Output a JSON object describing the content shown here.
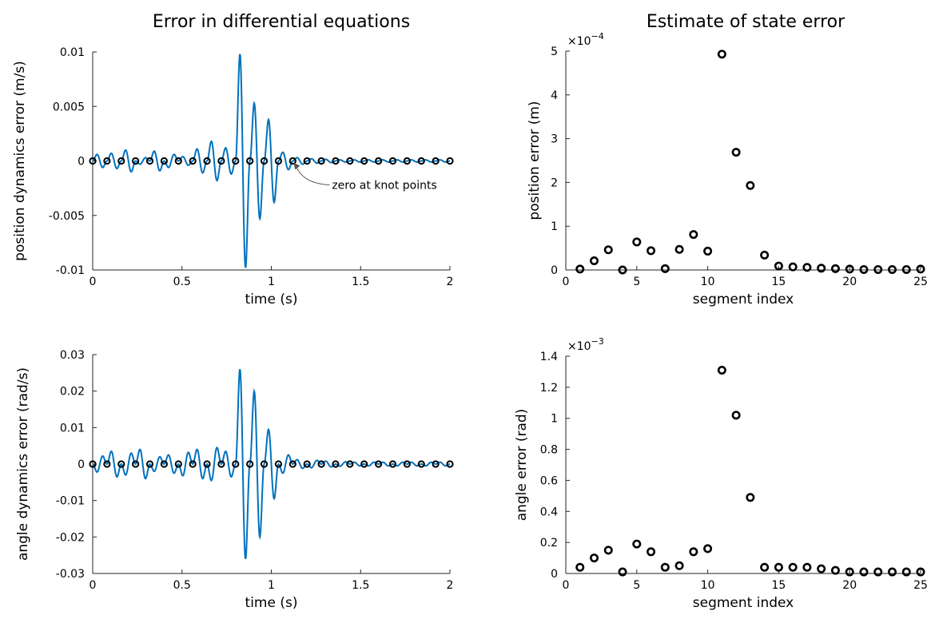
{
  "titles": {
    "left": "Error in differential equations",
    "right": "Estimate of state error"
  },
  "chart_data": [
    {
      "type": "line",
      "title": "Error in differential equations",
      "xlabel": "time (s)",
      "ylabel": "position dynamics error (m/s)",
      "xlim": [
        0,
        2
      ],
      "ylim": [
        -0.01,
        0.01
      ],
      "xticks": [
        0,
        0.5,
        1,
        1.5,
        2
      ],
      "xtick_labels": [
        "0",
        "0.5",
        "1",
        "1.5",
        "2"
      ],
      "yticks": [
        -0.01,
        -0.005,
        0,
        0.005,
        0.01
      ],
      "ytick_labels": [
        "-0.01",
        "-0.005",
        "0",
        "0.005",
        "0.01"
      ],
      "grid": false,
      "line_color": "#0072bd",
      "marker_color": "#000000",
      "segment_count": 25,
      "segment_duration": 0.08,
      "segment_peak": [
        0.0006,
        0.0007,
        0.001,
        0.0003,
        0.0009,
        0.0006,
        0.0004,
        0.0011,
        0.0018,
        0.0012,
        0.0098,
        0.0053,
        0.0038,
        0.0008,
        0.0003,
        0.0002,
        0.00015,
        0.0001,
        0.0001,
        0.0001,
        0.0001,
        0.0001,
        0.0001,
        0.0001,
        0.0001
      ],
      "segment_sign": [
        1,
        1,
        1,
        -1,
        1,
        -1,
        1,
        1,
        1,
        1,
        1,
        1,
        1,
        1,
        1,
        1,
        1,
        1,
        1,
        1,
        1,
        1,
        1,
        1,
        1
      ],
      "knot_values": 0,
      "annotation": {
        "text": "zero at knot points",
        "target": [
          1.12,
          0
        ]
      }
    },
    {
      "type": "scatter",
      "xlabel": "segment index",
      "ylabel": "position error (m)",
      "exponent_label": "×10",
      "exponent_power": "−4",
      "xlim": [
        0,
        25
      ],
      "ylim": [
        0,
        5
      ],
      "xticks": [
        0,
        5,
        10,
        15,
        20,
        25
      ],
      "xtick_labels": [
        "0",
        "5",
        "10",
        "15",
        "20",
        "25"
      ],
      "yticks": [
        0,
        1,
        2,
        3,
        4,
        5
      ],
      "ytick_labels": [
        "0",
        "1",
        "2",
        "3",
        "4",
        "5"
      ],
      "grid": false,
      "x": [
        1,
        2,
        3,
        4,
        5,
        6,
        7,
        8,
        9,
        10,
        11,
        12,
        13,
        14,
        15,
        16,
        17,
        18,
        19,
        20,
        21,
        22,
        23,
        24,
        25
      ],
      "y": [
        0.02,
        0.21,
        0.46,
        0.0,
        0.64,
        0.44,
        0.03,
        0.47,
        0.81,
        0.43,
        4.93,
        2.69,
        1.93,
        0.34,
        0.09,
        0.07,
        0.06,
        0.04,
        0.03,
        0.02,
        0.01,
        0.01,
        0.01,
        0.01,
        0.02
      ]
    },
    {
      "type": "line",
      "xlabel": "time (s)",
      "ylabel": "angle dynamics error (rad/s)",
      "xlim": [
        0,
        2
      ],
      "ylim": [
        -0.03,
        0.03
      ],
      "xticks": [
        0,
        0.5,
        1,
        1.5,
        2
      ],
      "xtick_labels": [
        "0",
        "0.5",
        "1",
        "1.5",
        "2"
      ],
      "yticks": [
        -0.03,
        -0.02,
        -0.01,
        0,
        0.01,
        0.02,
        0.03
      ],
      "ytick_labels": [
        "-0.03",
        "-0.02",
        "-0.01",
        "0",
        "0.01",
        "0.02",
        "0.03"
      ],
      "grid": false,
      "line_color": "#0072bd",
      "marker_color": "#000000",
      "segment_count": 25,
      "segment_duration": 0.08,
      "segment_peak": [
        0.0022,
        0.0035,
        0.003,
        0.004,
        0.002,
        0.0025,
        0.0032,
        0.004,
        0.0045,
        0.0035,
        0.026,
        0.02,
        0.0095,
        0.0025,
        0.0012,
        0.001,
        0.0008,
        0.0006,
        0.0005,
        0.0005,
        0.0005,
        0.0005,
        0.0005,
        0.0005,
        0.0005
      ],
      "segment_sign": [
        -1,
        1,
        -1,
        1,
        -1,
        1,
        -1,
        1,
        -1,
        1,
        1,
        1,
        1,
        -1,
        1,
        -1,
        1,
        -1,
        1,
        -1,
        1,
        -1,
        1,
        -1,
        1
      ],
      "knot_values": 0
    },
    {
      "type": "scatter",
      "xlabel": "segment index",
      "ylabel": "angle error (rad)",
      "exponent_label": "×10",
      "exponent_power": "−3",
      "xlim": [
        0,
        25
      ],
      "ylim": [
        0,
        1.4
      ],
      "xticks": [
        0,
        5,
        10,
        15,
        20,
        25
      ],
      "xtick_labels": [
        "0",
        "5",
        "10",
        "15",
        "20",
        "25"
      ],
      "yticks": [
        0,
        0.2,
        0.4,
        0.6,
        0.8,
        1,
        1.2,
        1.4
      ],
      "ytick_labels": [
        "0",
        "0.2",
        "0.4",
        "0.6",
        "0.8",
        "1",
        "1.2",
        "1.4"
      ],
      "grid": false,
      "x": [
        1,
        2,
        3,
        4,
        5,
        6,
        7,
        8,
        9,
        10,
        11,
        12,
        13,
        14,
        15,
        16,
        17,
        18,
        19,
        20,
        21,
        22,
        23,
        24,
        25
      ],
      "y": [
        0.04,
        0.1,
        0.15,
        0.01,
        0.19,
        0.14,
        0.04,
        0.05,
        0.14,
        0.16,
        1.31,
        1.02,
        0.49,
        0.04,
        0.04,
        0.04,
        0.04,
        0.03,
        0.02,
        0.01,
        0.01,
        0.01,
        0.01,
        0.01,
        0.01
      ]
    }
  ]
}
